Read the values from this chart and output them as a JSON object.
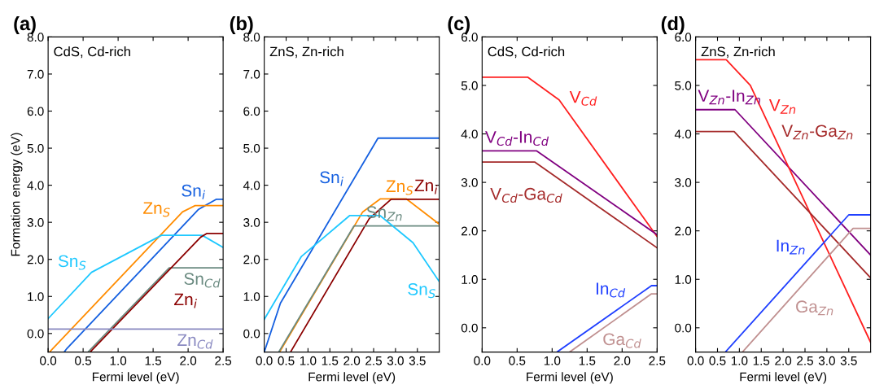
{
  "chart_data": [
    {
      "type": "line",
      "title": "(a)",
      "ylabel": "Formation energy (eV)",
      "xlabel": "Fermi level (eV)",
      "grid": false,
      "marker": "none",
      "line_style": "solid",
      "xlim": [
        0,
        2.5
      ],
      "xticks": [
        {
          "value": 0,
          "label": "0.0"
        },
        {
          "value": 0.5,
          "label": "0.5"
        },
        {
          "value": 1,
          "label": "1.0"
        },
        {
          "value": 1.5,
          "label": "1.5"
        },
        {
          "value": 2,
          "label": "2.0"
        },
        {
          "value": 2.5,
          "label": "2.5"
        }
      ],
      "ylim": [
        -0.5,
        8.0
      ],
      "yticks": [
        {
          "value": 0,
          "label": "0.0"
        },
        {
          "value": 1,
          "label": "1.0"
        },
        {
          "value": 2,
          "label": "2.0"
        },
        {
          "value": 3,
          "label": "3.0"
        },
        {
          "value": 4,
          "label": "4.0"
        },
        {
          "value": 5,
          "label": "5.0"
        },
        {
          "value": 6,
          "label": "6.0"
        },
        {
          "value": 7,
          "label": "7.0"
        },
        {
          "value": 8,
          "label": "8.0"
        }
      ],
      "series": [
        {
          "color": "#1560e0",
          "x": [
            0.23,
            0.27,
            2.15,
            2.4,
            2.5
          ],
          "values": [
            -0.5,
            -0.4,
            3.35,
            3.62,
            3.62
          ]
        },
        {
          "color": "#ff8c00",
          "x": [
            0.02,
            1.92,
            2.1,
            2.5
          ],
          "values": [
            -0.5,
            3.28,
            3.45,
            3.45
          ]
        },
        {
          "color": "#1ec8ff",
          "x": [
            0,
            0.62,
            1.62,
            2.2,
            2.5
          ],
          "values": [
            0.4,
            1.65,
            2.65,
            2.65,
            2.32
          ]
        },
        {
          "color": "#6a8a80",
          "x": [
            0.57,
            1.73,
            2.5
          ],
          "values": [
            -0.5,
            1.77,
            1.77
          ]
        },
        {
          "color": "#8b0000",
          "x": [
            0.6,
            2.18,
            2.27,
            2.5
          ],
          "values": [
            -0.5,
            2.6,
            2.7,
            2.7
          ]
        },
        {
          "color": "#8888c0",
          "x": [
            0,
            2.5
          ],
          "values": [
            0.12,
            0.12
          ]
        }
      ],
      "annotations": [
        {
          "text": "Sn$_{i}$",
          "x": 2.3,
          "y": 3.51
        },
        {
          "text": "Zn$_{S}$",
          "x": 1.8,
          "y": 3.04
        },
        {
          "text": "Sn$_{S}$",
          "x": 0.6,
          "y": 1.61
        },
        {
          "text": "Sn$_{Cd}$",
          "x": 2.2,
          "y": 1.77
        },
        {
          "text": "Zn$_{i}$",
          "x": 1.6,
          "y": 1.46
        },
        {
          "text": "Zn$_{Cd}$",
          "x": 2.1,
          "y": 0.12
        },
        "CdS, Cd-rich"
      ]
    },
    {
      "type": "line",
      "title": "(b)",
      "xlabel": "Fermi level (eV)",
      "grid": false,
      "marker": "none",
      "line_style": "solid",
      "xlim": [
        0,
        4.0
      ],
      "xticks": [
        {
          "value": 0,
          "label": "0.0"
        },
        {
          "value": 0.5,
          "label": "0.5"
        },
        {
          "value": 1,
          "label": "1.0"
        },
        {
          "value": 1.5,
          "label": "1.5"
        },
        {
          "value": 2,
          "label": "2.0"
        },
        {
          "value": 2.5,
          "label": "2.5"
        },
        {
          "value": 3,
          "label": "3.0"
        },
        {
          "value": 3.5,
          "label": "3.5"
        }
      ],
      "ylim": [
        -0.5,
        8.0
      ],
      "yticks": [
        {
          "value": 0,
          "label": "0.0"
        },
        {
          "value": 1,
          "label": "1.0"
        },
        {
          "value": 2,
          "label": "2.0"
        },
        {
          "value": 3,
          "label": "3.0"
        },
        {
          "value": 4,
          "label": "4.0"
        },
        {
          "value": 5,
          "label": "5.0"
        },
        {
          "value": 6,
          "label": "6.0"
        },
        {
          "value": 7,
          "label": "7.0"
        },
        {
          "value": 8,
          "label": "8.0"
        }
      ],
      "series": [
        {
          "color": "#1560e0",
          "x": [
            0,
            0.37,
            2.6,
            4.0
          ],
          "values": [
            -0.5,
            0.82,
            5.27,
            5.27
          ]
        },
        {
          "color": "#ff8c00",
          "x": [
            0.35,
            2.25,
            2.65,
            3.25,
            4.0
          ],
          "values": [
            -0.5,
            3.28,
            3.63,
            3.63,
            2.95
          ]
        },
        {
          "color": "#8b0000",
          "x": [
            0.6,
            2.4,
            2.9,
            4.0
          ],
          "values": [
            -0.5,
            3.1,
            3.62,
            3.62
          ]
        },
        {
          "color": "#6a8a80",
          "x": [
            0.33,
            2.05,
            4.0
          ],
          "values": [
            -0.5,
            2.9,
            2.9
          ]
        },
        {
          "color": "#1ec8ff",
          "x": [
            0,
            0.85,
            1.95,
            2.65,
            3.4,
            4.0
          ],
          "values": [
            0.38,
            2.08,
            3.18,
            3.18,
            2.45,
            1.4
          ]
        }
      ],
      "annotations": [
        {
          "text": "Sn$_{i}$",
          "x": 1.9,
          "y": 3.87
        },
        {
          "text": "Zn$_{S}$",
          "x": 2.7,
          "y": 3.63
        },
        {
          "text": "Zn$_{i}$",
          "x": 3.7,
          "y": 3.62
        },
        {
          "text": "Sn$_{Zn}$",
          "x": 2.75,
          "y": 2.9
        },
        {
          "text": "Sn$_{S}$",
          "x": 3.6,
          "y": 2.1
        },
        "ZnS, Zn-rich"
      ]
    },
    {
      "type": "line",
      "title": "(c)",
      "xlabel": "Fermi level (eV)",
      "grid": false,
      "marker": "none",
      "line_style": "solid",
      "xlim": [
        0,
        2.5
      ],
      "xticks": [
        {
          "value": 0,
          "label": "0.0"
        },
        {
          "value": 0.5,
          "label": "0.5"
        },
        {
          "value": 1,
          "label": "1.0"
        },
        {
          "value": 1.5,
          "label": "1.5"
        },
        {
          "value": 2,
          "label": "2.0"
        },
        {
          "value": 2.5,
          "label": "2.5"
        }
      ],
      "ylim": [
        -0.5,
        6.0
      ],
      "yticks": [
        {
          "value": 0,
          "label": "0.0"
        },
        {
          "value": 1,
          "label": "1.0"
        },
        {
          "value": 2,
          "label": "2.0"
        },
        {
          "value": 3,
          "label": "3.0"
        },
        {
          "value": 4,
          "label": "4.0"
        },
        {
          "value": 5,
          "label": "5.0"
        },
        {
          "value": 6,
          "label": "6.0"
        }
      ],
      "series": [
        {
          "color": "#ff2020",
          "x": [
            0,
            0.65,
            1.1,
            2.5
          ],
          "values": [
            5.17,
            5.17,
            4.7,
            1.88
          ]
        },
        {
          "color": "#800080",
          "x": [
            0,
            0.78,
            2.5
          ],
          "values": [
            3.65,
            3.65,
            1.92
          ]
        },
        {
          "color": "#a52a2a",
          "x": [
            0,
            0.75,
            2.5
          ],
          "values": [
            3.42,
            3.42,
            1.65
          ]
        },
        {
          "color": "#2040ff",
          "x": [
            1.07,
            2.42,
            2.5
          ],
          "values": [
            -0.5,
            0.87,
            0.87
          ]
        },
        {
          "color": "#c09090",
          "x": [
            1.25,
            2.42,
            2.5
          ],
          "values": [
            -0.5,
            0.7,
            0.7
          ]
        }
      ],
      "annotations": [
        {
          "text": "V$_{Cd}$",
          "x": 1.2,
          "y": 4.5
        },
        {
          "text": "V$_{Cd}$-In$_{Cd}$",
          "x": 0.5,
          "y": 3.65
        },
        {
          "text": "V$_{Cd}$-Ga$_{Cd}$",
          "x": 1.2,
          "y": 2.965
        },
        {
          "text": "In$_{Cd}$",
          "x": 2.1,
          "y": 0.545
        },
        {
          "text": "Ga$_{Cd}$",
          "x": 2.0,
          "y": 0.27
        },
        "CdS, Cd-rich"
      ]
    },
    {
      "type": "line",
      "title": "(d)",
      "xlabel": "Fermi level (eV)",
      "grid": false,
      "marker": "none",
      "line_style": "solid",
      "xlim": [
        0,
        4.0
      ],
      "xticks": [
        {
          "value": 0,
          "label": "0.0"
        },
        {
          "value": 0.5,
          "label": "0.5"
        },
        {
          "value": 1,
          "label": "1.0"
        },
        {
          "value": 1.5,
          "label": "1.5"
        },
        {
          "value": 2,
          "label": "2.0"
        },
        {
          "value": 2.5,
          "label": "2.5"
        },
        {
          "value": 3,
          "label": "3.0"
        },
        {
          "value": 3.5,
          "label": "3.5"
        }
      ],
      "ylim": [
        -0.5,
        6.0
      ],
      "yticks": [
        {
          "value": 0,
          "label": "0.0"
        },
        {
          "value": 1,
          "label": "1.0"
        },
        {
          "value": 2,
          "label": "2.0"
        },
        {
          "value": 3,
          "label": "3.0"
        },
        {
          "value": 4,
          "label": "4.0"
        },
        {
          "value": 5,
          "label": "5.0"
        },
        {
          "value": 6,
          "label": "6.0"
        }
      ],
      "series": [
        {
          "color": "#800080",
          "x": [
            0,
            0.9,
            4.0
          ],
          "values": [
            4.5,
            4.5,
            1.5
          ]
        },
        {
          "color": "#ff2020",
          "x": [
            0,
            0.7,
            1.25,
            4.0
          ],
          "values": [
            5.53,
            5.53,
            5.0,
            -0.3
          ]
        },
        {
          "color": "#a52a2a",
          "x": [
            0,
            0.88,
            4.0
          ],
          "values": [
            4.05,
            4.05,
            1.03
          ]
        },
        {
          "color": "#2040ff",
          "x": [
            0.68,
            3.5,
            4.0
          ],
          "values": [
            -0.5,
            2.33,
            2.33
          ]
        },
        {
          "color": "#c09090",
          "x": [
            1.07,
            3.6,
            4.0
          ],
          "values": [
            -0.5,
            2.05,
            2.05
          ]
        }
      ],
      "annotations": [
        {
          "text": "V$_{Zn}$-In$_{Zn}$",
          "x": 0.78,
          "y": 4.5
        },
        {
          "text": "V$_{Zn}$",
          "x": 1.6,
          "y": 4.33
        },
        {
          "text": "V$_{Zn}$-Ga$_{Zn}$",
          "x": 1.5,
          "y": 3.45
        },
        {
          "text": "In$_{Zn}$",
          "x": 2.6,
          "y": 1.43
        },
        {
          "text": "Ga$_{Zn}$",
          "x": 2.2,
          "y": 0.64
        },
        "ZnS, Zn-rich"
      ]
    }
  ]
}
